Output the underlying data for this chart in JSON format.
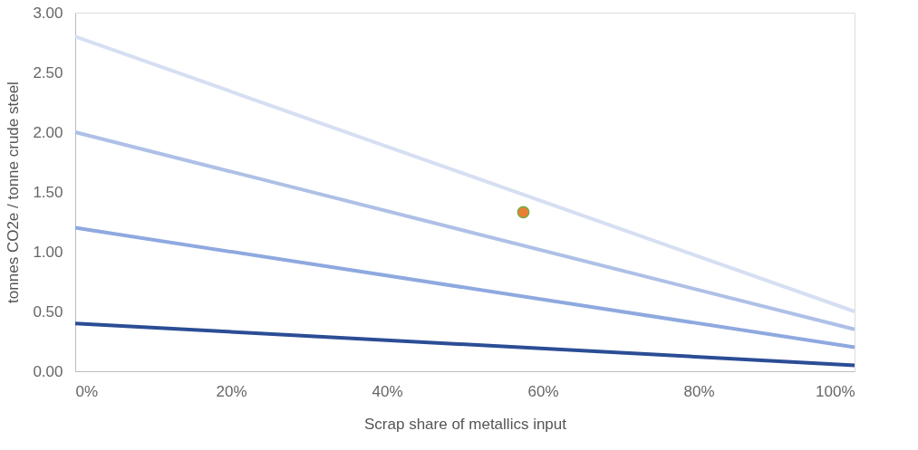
{
  "chart_data": {
    "type": "line",
    "xlabel": "Scrap share of metallics input",
    "ylabel": "tonnes CO2e / tonne crude steel",
    "xlim": [
      0,
      100
    ],
    "xticks": [
      {
        "value": 0,
        "label": "0%"
      },
      {
        "value": 20,
        "label": "20%"
      },
      {
        "value": 40,
        "label": "40%"
      },
      {
        "value": 60,
        "label": "60%"
      },
      {
        "value": 80,
        "label": "80%"
      },
      {
        "value": 100,
        "label": "100%"
      }
    ],
    "ylim": [
      0,
      3
    ],
    "yticks": [
      {
        "value": 0,
        "label": "0.00"
      },
      {
        "value": 0.5,
        "label": "0.50"
      },
      {
        "value": 1,
        "label": "1.00"
      },
      {
        "value": 1.5,
        "label": "1.50"
      },
      {
        "value": 2,
        "label": "2.00"
      },
      {
        "value": 2.5,
        "label": "2.50"
      },
      {
        "value": 3,
        "label": "3.00"
      }
    ],
    "grid": false,
    "series": [
      {
        "color": "#d6dff2",
        "x": [
          0,
          100
        ],
        "values": [
          2.8,
          0.5
        ]
      },
      {
        "color": "#aec0e6",
        "x": [
          0,
          100
        ],
        "values": [
          2.0,
          0.35
        ]
      },
      {
        "color": "#8ea9df",
        "x": [
          0,
          100
        ],
        "values": [
          1.2,
          0.2
        ]
      },
      {
        "color": "#2b4d95",
        "x": [
          0,
          100
        ],
        "values": [
          0.4,
          0.05
        ]
      },
      {
        "type": "scatter",
        "marker": "circle",
        "color": "#ed7d31",
        "x": [
          57.5
        ],
        "values": [
          1.33
        ]
      }
    ]
  }
}
